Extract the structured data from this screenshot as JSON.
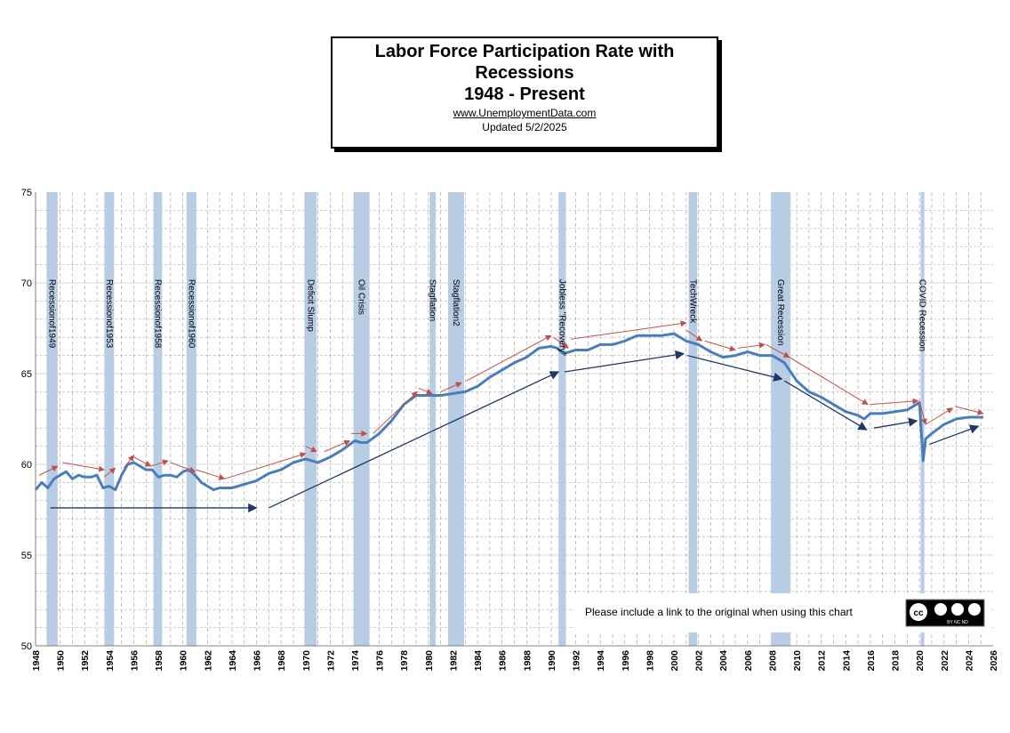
{
  "chart_data": {
    "type": "line",
    "title_lines": [
      "Labor Force Participation Rate with",
      "Recessions",
      "1948 - Present"
    ],
    "website": "www.UnemploymentData.com",
    "updated": "Updated  5/2/2025",
    "xlim": [
      1948,
      2026
    ],
    "ylim": [
      50,
      75
    ],
    "yticks": [
      50,
      55,
      60,
      65,
      70,
      75
    ],
    "xticks": [
      1948,
      1950,
      1952,
      1954,
      1956,
      1958,
      1960,
      1962,
      1964,
      1966,
      1968,
      1970,
      1972,
      1974,
      1976,
      1978,
      1980,
      1982,
      1984,
      1986,
      1988,
      1990,
      1992,
      1994,
      1996,
      1998,
      2000,
      2002,
      2004,
      2006,
      2008,
      2010,
      2012,
      2014,
      2016,
      2018,
      2020,
      2022,
      2024,
      2026
    ],
    "grid": true,
    "series": [
      {
        "color": "#4a7ebb",
        "x": [
          1948,
          1948.5,
          1949,
          1949.5,
          1950,
          1950.5,
          1951,
          1951.5,
          1952,
          1952.5,
          1953,
          1953.5,
          1954,
          1954.5,
          1955,
          1955.5,
          1956,
          1956.5,
          1957,
          1957.5,
          1958,
          1958.5,
          1959,
          1959.5,
          1960,
          1960.5,
          1961,
          1961.5,
          1962,
          1962.5,
          1963,
          1963.5,
          1964,
          1964.5,
          1965,
          1966,
          1967,
          1968,
          1969,
          1970,
          1970.5,
          1971,
          1972,
          1973,
          1974,
          1974.5,
          1975,
          1976,
          1977,
          1978,
          1979,
          1980,
          1981,
          1982,
          1983,
          1984,
          1985,
          1986,
          1987,
          1988,
          1989,
          1990,
          1990.5,
          1991,
          1992,
          1993,
          1994,
          1995,
          1996,
          1997,
          1998,
          1999,
          2000,
          2000.5,
          2001,
          2002,
          2003,
          2004,
          2005,
          2006,
          2007,
          2008,
          2008.5,
          2009,
          2010,
          2011,
          2012,
          2013,
          2014,
          2015,
          2015.5,
          2016,
          2017,
          2018,
          2019,
          2020,
          2020.3,
          2020.5,
          2021,
          2022,
          2023,
          2024,
          2025.2
        ],
        "y": [
          58.6,
          59.0,
          58.7,
          59.2,
          59.4,
          59.6,
          59.2,
          59.4,
          59.3,
          59.3,
          59.4,
          58.7,
          58.8,
          58.6,
          59.4,
          60.0,
          60.1,
          59.9,
          59.7,
          59.7,
          59.3,
          59.4,
          59.4,
          59.3,
          59.6,
          59.7,
          59.4,
          59.0,
          58.8,
          58.6,
          58.7,
          58.7,
          58.7,
          58.8,
          58.9,
          59.1,
          59.5,
          59.7,
          60.1,
          60.3,
          60.2,
          60.1,
          60.4,
          60.8,
          61.3,
          61.2,
          61.2,
          61.7,
          62.4,
          63.3,
          63.8,
          63.8,
          63.8,
          63.9,
          64.0,
          64.3,
          64.8,
          65.2,
          65.6,
          65.9,
          66.4,
          66.5,
          66.4,
          66.1,
          66.3,
          66.3,
          66.6,
          66.6,
          66.8,
          67.1,
          67.1,
          67.1,
          67.2,
          67.0,
          66.8,
          66.6,
          66.2,
          65.9,
          66.0,
          66.2,
          66.0,
          66.0,
          65.8,
          65.6,
          64.6,
          64.0,
          63.7,
          63.3,
          62.9,
          62.7,
          62.5,
          62.8,
          62.8,
          62.9,
          63.0,
          63.4,
          60.2,
          61.4,
          61.7,
          62.2,
          62.5,
          62.6,
          62.6
        ]
      }
    ],
    "recessions": [
      {
        "start": 1948.9,
        "end": 1949.8,
        "label": "Recessionof1949"
      },
      {
        "start": 1953.6,
        "end": 1954.4,
        "label": "Recessionof1953"
      },
      {
        "start": 1957.6,
        "end": 1958.3,
        "label": "Recessionof1958"
      },
      {
        "start": 1960.3,
        "end": 1961.1,
        "label": "Recessionof1960"
      },
      {
        "start": 1969.9,
        "end": 1970.9,
        "label": "Deficit Slump"
      },
      {
        "start": 1973.9,
        "end": 1975.2,
        "label": "Oil Crisis"
      },
      {
        "start": 1980.1,
        "end": 1980.6,
        "label": "Stagflation"
      },
      {
        "start": 1981.6,
        "end": 1982.9,
        "label": "Stagflation2"
      },
      {
        "start": 1990.6,
        "end": 1991.2,
        "label": "Jobless \"Recovery\""
      },
      {
        "start": 2001.2,
        "end": 2001.9,
        "label": "TechWreck"
      },
      {
        "start": 2007.9,
        "end": 2009.5,
        "label": "Great Recession"
      },
      {
        "start": 2020.1,
        "end": 2020.4,
        "label": "COVID Recession"
      }
    ],
    "recession_color": "#b8cce4",
    "notice": "Please include a link to the original when using this chart",
    "cc_badge": {
      "main": "cc",
      "sub": "BY  NC  ND"
    },
    "red_arrows": [
      [
        1948.3,
        59.4,
        1949.8,
        59.9
      ],
      [
        1950.2,
        60.1,
        1953.6,
        59.7
      ],
      [
        1953.6,
        59.3,
        1954.5,
        59.8
      ],
      [
        1955.2,
        59.8,
        1956.0,
        60.5
      ],
      [
        1956.0,
        60.4,
        1957.4,
        59.9
      ],
      [
        1957.4,
        59.9,
        1958.8,
        60.2
      ],
      [
        1959.0,
        60.1,
        1961.0,
        59.6
      ],
      [
        1961.1,
        59.7,
        1963.4,
        59.2
      ],
      [
        1963.4,
        59.2,
        1970.0,
        60.6
      ],
      [
        1970.0,
        61.0,
        1970.9,
        60.7
      ],
      [
        1971.5,
        60.7,
        1973.6,
        61.3
      ],
      [
        1973.7,
        61.7,
        1975.0,
        61.7
      ],
      [
        1975.5,
        61.7,
        1979.1,
        64.0
      ],
      [
        1979.2,
        64.2,
        1980.3,
        63.9
      ],
      [
        1981.0,
        64.0,
        1982.7,
        64.5
      ],
      [
        1983.1,
        64.6,
        1990.0,
        67.1
      ],
      [
        1990.2,
        67.0,
        1991.4,
        66.4
      ],
      [
        1991.6,
        66.9,
        2001.0,
        67.8
      ],
      [
        2001.0,
        67.4,
        2002.3,
        66.8
      ],
      [
        2002.5,
        66.8,
        2005.0,
        66.3
      ],
      [
        2005.2,
        66.4,
        2007.4,
        66.6
      ],
      [
        2007.5,
        66.6,
        2009.4,
        65.9
      ],
      [
        2009.4,
        65.9,
        2015.8,
        63.3
      ],
      [
        2016.0,
        63.3,
        2019.9,
        63.5
      ],
      [
        2020.0,
        63.5,
        2020.5,
        62.2
      ],
      [
        2020.5,
        62.2,
        2022.7,
        63.1
      ],
      [
        2022.9,
        63.2,
        2025.2,
        62.8
      ]
    ],
    "navy_arrows": [
      [
        1949.2,
        57.6,
        1966.0,
        57.6
      ],
      [
        1967.0,
        57.6,
        1990.6,
        65.1
      ],
      [
        1991.1,
        65.1,
        2000.8,
        66.1
      ],
      [
        2001.1,
        66.0,
        2008.8,
        64.7
      ],
      [
        2009.0,
        64.6,
        2015.7,
        61.9
      ],
      [
        2016.3,
        62.0,
        2019.8,
        62.4
      ],
      [
        2020.8,
        61.1,
        2024.8,
        62.1
      ]
    ]
  }
}
